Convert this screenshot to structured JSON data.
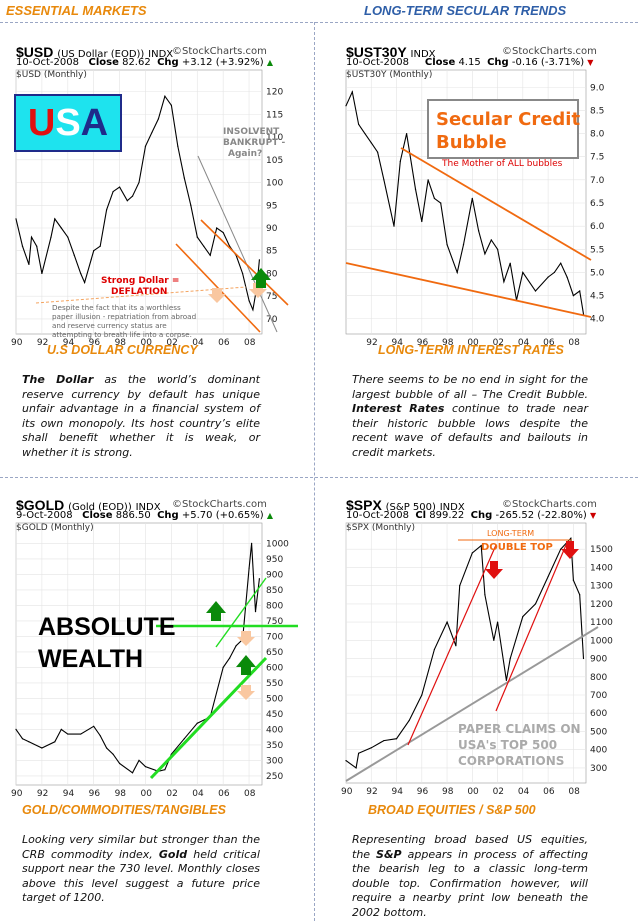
{
  "header": {
    "left": "ESSENTIAL MARKETS",
    "right": "LONG-TERM SECULAR TRENDS"
  },
  "panels": {
    "usd": {
      "symbol": "$USD",
      "name": "(US Dollar (EOD))",
      "exchange": "INDX",
      "logo": "©StockCharts.com",
      "date": "10-Oct-2008",
      "close_label": "Close",
      "close": "82.62",
      "chg_label": "Chg",
      "chg": "+3.12 (+3.92%)",
      "inner_label": "$USD (Monthly)",
      "badge": {
        "u": "U",
        "s": "S",
        "a": "A"
      },
      "annotations": {
        "insolvent": [
          "INSOLVENT",
          "BANKRUPT -",
          "Again?"
        ],
        "strong": [
          "Strong Dollar =",
          "DEFLATION"
        ],
        "note": [
          "Despite the fact that its a worthless",
          "paper illusion - repatriation from abroad",
          "and reserve currency status are",
          "attempting to breath life into a corpse."
        ]
      },
      "caption": "U.S DOLLAR CURRENCY",
      "desc_bold": "The Dollar",
      "desc": " as the world’s dominant reserve currency by default has unique unfair advantage in a financial system of its own monopoly. Its host country’s elite shall benefit whether it is weak, or whether it is strong."
    },
    "ust": {
      "symbol": "$UST30Y",
      "name": "",
      "exchange": "INDX",
      "logo": "©StockCharts.com",
      "date": "10-Oct-2008",
      "close_label": "Close",
      "close": "4.15",
      "chg_label": "Chg",
      "chg": "-0.16 (-3.71%)",
      "inner_label": "$UST30Y (Monthly)",
      "annotations": {
        "title": [
          "Secular Credit",
          "Bubble"
        ],
        "sub": "The Mother of ALL bubbles"
      },
      "caption": "LONG-TERM INTEREST RATES",
      "desc_pre": "There seems to be no end in sight for the largest bubble of all – The Credit Bubble. ",
      "desc_bold": "Interest Rates",
      "desc": " continue to trade near their historic bubble lows despite the recent wave of defaults and bailouts in credit markets."
    },
    "gold": {
      "symbol": "$GOLD",
      "name": "(Gold (EOD))",
      "exchange": "INDX",
      "logo": "©StockCharts.com",
      "date": "9-Oct-2008",
      "close_label": "Close",
      "close": "886.50",
      "chg_label": "Chg",
      "chg": "+5.70 (+0.65%)",
      "inner_label": "$GOLD (Monthly)",
      "annotations": {
        "big": [
          "ABSOLUTE",
          "WEALTH"
        ]
      },
      "caption": "GOLD/COMMODITIES/TANGIBLES",
      "desc_pre": "Looking very similar but stronger than the CRB commodity index, ",
      "desc_bold": "Gold",
      "desc": " held critical support near the 730 level. Monthly closes above this level suggest a future price target of 1200."
    },
    "spx": {
      "symbol": "$SPX",
      "name": "(S&P 500)",
      "exchange": "INDX",
      "logo": "©StockCharts.com",
      "date": "10-Oct-2008",
      "close_label": "Cl",
      "close": "899.22",
      "chg_label": "Chg",
      "chg": "-265.52 (-22.80%)",
      "inner_label": "$SPX (Monthly)",
      "annotations": {
        "lt": "LONG-TERM",
        "dt": "DOUBLE TOP",
        "paper": [
          "PAPER CLAIMS ON",
          "USA's TOP 500",
          "CORPORATIONS"
        ]
      },
      "caption": "BROAD EQUITIES / S&P 500",
      "desc_pre": "Representing broad based US equities, the ",
      "desc_bold": "S&P",
      "desc": " appears in process of affecting the bearish leg to a classic long-term double top. Confirmation however, will require a nearby print low beneath the 2002 bottom."
    }
  },
  "chart_data": [
    {
      "id": "usd",
      "type": "line",
      "title": "$USD (Monthly)",
      "ylim": [
        68,
        123
      ],
      "xlim": [
        1990,
        2009
      ],
      "yticks": [
        70,
        75,
        80,
        85,
        90,
        95,
        100,
        105,
        110,
        115,
        120
      ],
      "xticks": [
        "90",
        "92",
        "94",
        "96",
        "98",
        "00",
        "02",
        "04",
        "06",
        "08"
      ],
      "series": [
        {
          "x": [
            1990,
            1990.5,
            1991,
            1991.2,
            1991.6,
            1992,
            1992.7,
            1993,
            1993.5,
            1994,
            1994.5,
            1995,
            1995.3,
            1995.8,
            1996,
            1996.5,
            1997,
            1997.5,
            1998,
            1998.6,
            1999,
            1999.5,
            2000,
            2000.5,
            2001,
            2001.5,
            2002,
            2002.5,
            2003,
            2003.5,
            2004,
            2004.5,
            2005,
            2005.5,
            2006,
            2006.5,
            2007,
            2007.5,
            2008,
            2008.3,
            2008.6,
            2008.8
          ],
          "values": [
            92,
            86,
            82,
            88,
            86,
            80,
            88,
            92,
            90,
            88,
            84,
            80,
            78,
            83,
            85,
            86,
            94,
            98,
            99,
            96,
            97,
            100,
            108,
            111,
            114,
            119,
            117,
            108,
            101,
            95,
            88,
            86,
            84,
            90,
            89,
            86,
            84,
            80,
            74,
            72,
            77,
            83
          ]
        }
      ]
    },
    {
      "id": "ust",
      "type": "line",
      "title": "$UST30Y (Monthly)",
      "ylim": [
        3.8,
        9.2
      ],
      "xlim": [
        1990,
        2009
      ],
      "yticks": [
        4.0,
        4.5,
        5.0,
        5.5,
        6.0,
        6.5,
        7.0,
        7.5,
        8.0,
        8.5,
        9.0
      ],
      "xticks": [
        "92",
        "94",
        "96",
        "98",
        "00",
        "02",
        "04",
        "06",
        "08"
      ],
      "series": [
        {
          "x": [
            1990,
            1990.5,
            1991,
            1991.5,
            1992,
            1992.5,
            1993,
            1993.8,
            1994.3,
            1994.8,
            1995.5,
            1996,
            1996.5,
            1997,
            1997.5,
            1998,
            1998.8,
            1999.3,
            2000,
            2000.5,
            2001,
            2001.5,
            2002,
            2002.5,
            2003,
            2003.5,
            2004,
            2005,
            2006,
            2006.5,
            2007,
            2007.5,
            2008,
            2008.5,
            2008.8
          ],
          "values": [
            8.6,
            8.9,
            8.2,
            8.0,
            7.8,
            7.6,
            7.0,
            6.0,
            7.4,
            8.0,
            6.8,
            6.1,
            7.0,
            6.6,
            6.5,
            5.6,
            5.0,
            5.6,
            6.6,
            5.9,
            5.4,
            5.7,
            5.5,
            4.8,
            5.2,
            4.4,
            5.0,
            4.6,
            4.9,
            5.0,
            5.2,
            4.9,
            4.5,
            4.6,
            4.1
          ]
        }
      ]
    },
    {
      "id": "gold",
      "type": "line",
      "title": "$GOLD (Monthly)",
      "ylim": [
        240,
        1040
      ],
      "xlim": [
        1990,
        2009
      ],
      "yticks": [
        250,
        300,
        350,
        400,
        450,
        500,
        550,
        600,
        650,
        700,
        750,
        800,
        850,
        900,
        950,
        1000
      ],
      "xticks": [
        "90",
        "92",
        "94",
        "96",
        "98",
        "00",
        "02",
        "04",
        "06",
        "08"
      ],
      "series": [
        {
          "x": [
            1990,
            1990.5,
            1991,
            1992,
            1993,
            1993.5,
            1994,
            1995,
            1996,
            1996.5,
            1997,
            1997.5,
            1998,
            1999,
            1999.5,
            2000,
            2001,
            2001.5,
            2002,
            2003,
            2004,
            2005,
            2006,
            2006.5,
            2007,
            2007.5,
            2008,
            2008.2,
            2008.5,
            2008.8
          ],
          "values": [
            400,
            370,
            360,
            340,
            360,
            400,
            385,
            385,
            410,
            380,
            340,
            320,
            290,
            260,
            300,
            280,
            265,
            270,
            320,
            370,
            420,
            440,
            600,
            630,
            670,
            690,
            920,
            1000,
            780,
            886
          ]
        }
      ]
    },
    {
      "id": "spx",
      "type": "line",
      "title": "$SPX (Monthly)",
      "ylim": [
        250,
        1600
      ],
      "xlim": [
        1990,
        2009
      ],
      "yticks": [
        300,
        400,
        500,
        600,
        700,
        800,
        900,
        1000,
        1100,
        1200,
        1300,
        1400,
        1500
      ],
      "xticks": [
        "90",
        "92",
        "94",
        "96",
        "98",
        "00",
        "02",
        "04",
        "06",
        "08"
      ],
      "series": [
        {
          "x": [
            1990,
            1990.8,
            1991,
            1992,
            1993,
            1994,
            1995,
            1996,
            1997,
            1998,
            1998.7,
            1999,
            2000,
            2000.7,
            2001,
            2001.7,
            2002,
            2002.7,
            2003,
            2004,
            2005,
            2006,
            2007,
            2007.8,
            2008,
            2008.5,
            2008.8
          ],
          "values": [
            340,
            300,
            380,
            410,
            450,
            460,
            560,
            700,
            950,
            1100,
            970,
            1300,
            1480,
            1520,
            1250,
            1000,
            1100,
            780,
            900,
            1130,
            1200,
            1350,
            1500,
            1560,
            1330,
            1250,
            900
          ]
        }
      ]
    }
  ]
}
